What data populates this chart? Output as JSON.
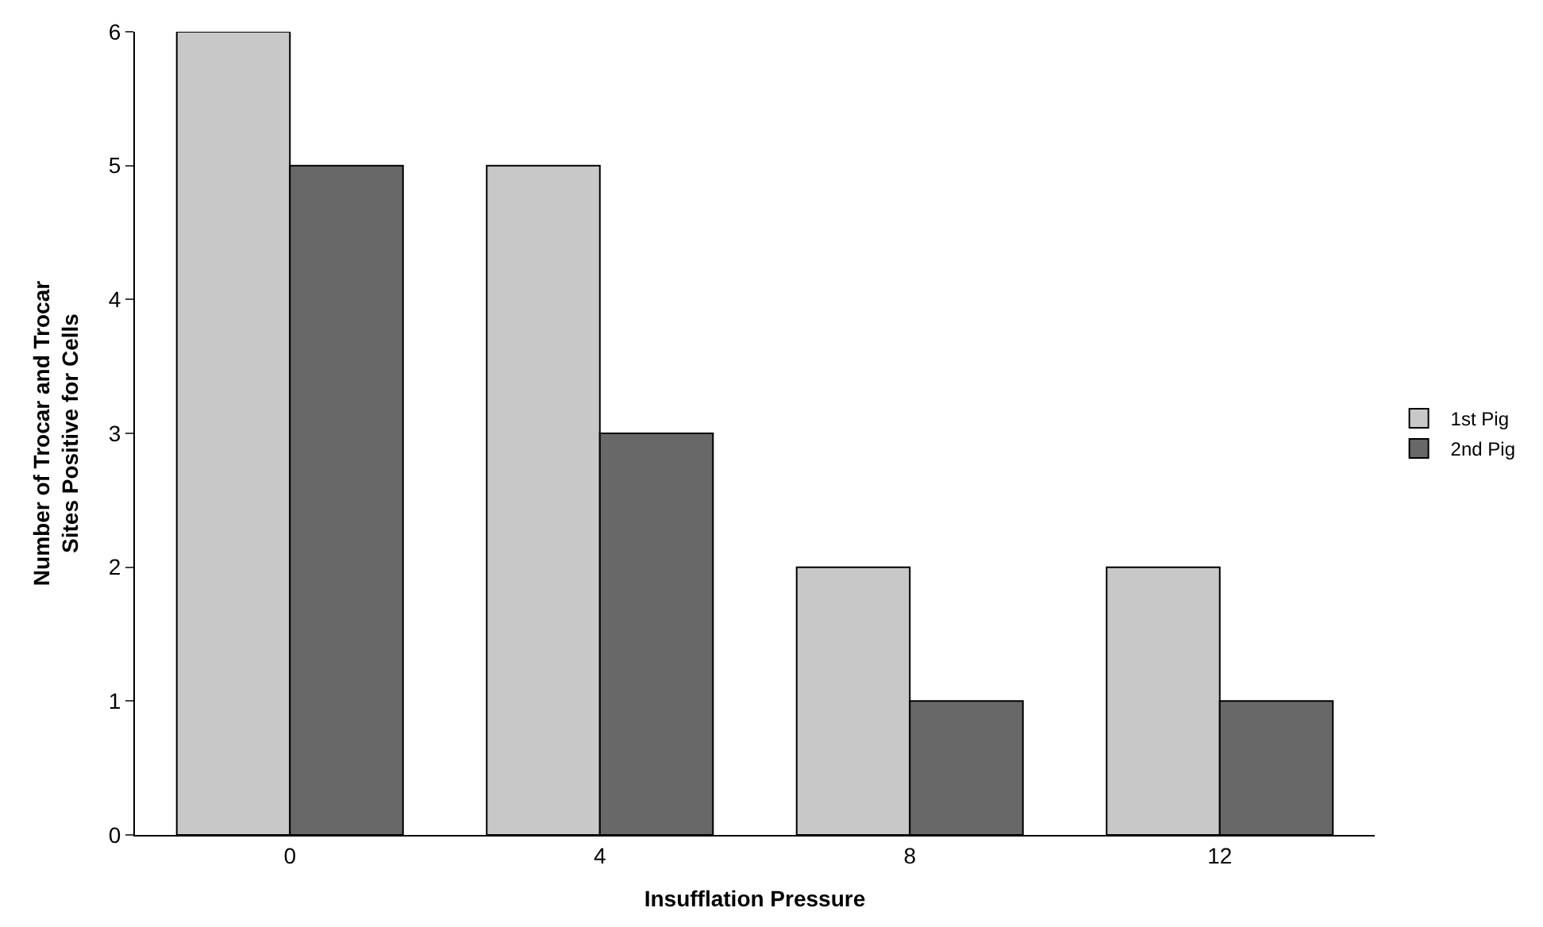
{
  "chart_data": {
    "type": "bar",
    "xlabel": "Insufflation Pressure",
    "ylabel": "Number of Trocar and Trocar Sites Positive for Cells",
    "categories": [
      "0",
      "4",
      "8",
      "12"
    ],
    "series": [
      {
        "name": "1st Pig",
        "color": "#c8c8c8",
        "values": [
          6,
          5,
          2,
          2
        ]
      },
      {
        "name": "2nd Pig",
        "color": "#686868",
        "values": [
          5,
          3,
          1,
          1
        ]
      }
    ],
    "ylim": [
      0,
      6
    ],
    "yticks": [
      0,
      1,
      2,
      3,
      4,
      5,
      6
    ],
    "legend": "right"
  }
}
